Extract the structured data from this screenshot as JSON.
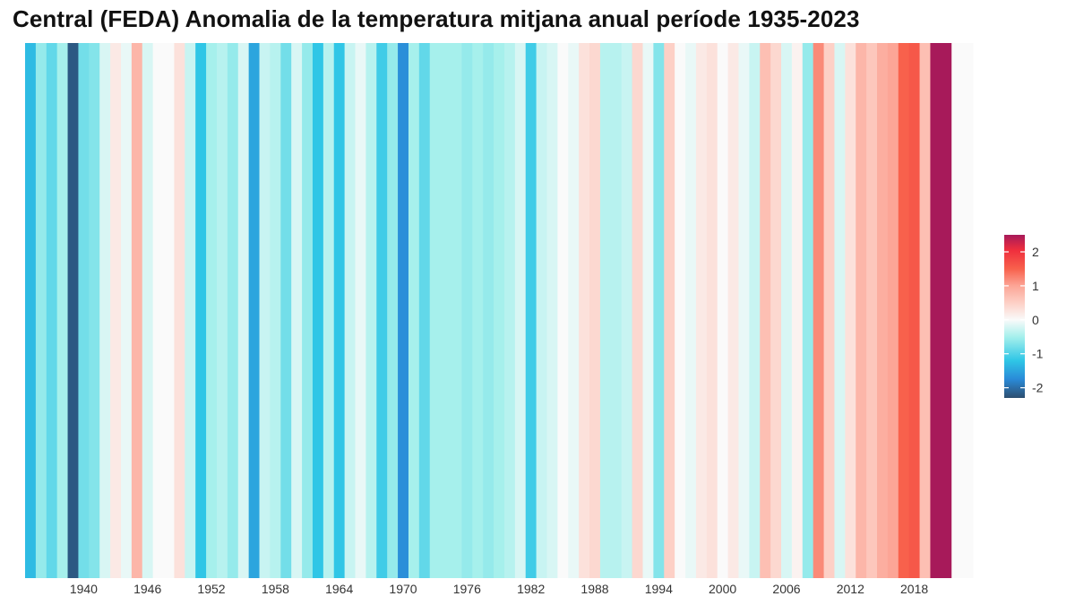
{
  "chart_data": {
    "type": "heatmap",
    "title": "Central (FEDA) Anomalia de la temperatura mitjana anual període 1935-2023",
    "xlabel": "",
    "ylabel": "",
    "x_start": 1935,
    "x_end": 2023,
    "xticks": [
      1940,
      1946,
      1952,
      1958,
      1964,
      1970,
      1976,
      1982,
      1988,
      1994,
      2000,
      2006,
      2012,
      2018
    ],
    "values": [
      -1.3,
      -0.6,
      -0.9,
      -0.5,
      -2.2,
      -0.8,
      -0.7,
      -0.2,
      0.2,
      -0.1,
      0.8,
      -0.2,
      0.0,
      0.0,
      0.3,
      -0.3,
      -1.2,
      -0.5,
      -0.4,
      -0.6,
      -0.2,
      -1.5,
      -0.3,
      -0.4,
      -0.8,
      -0.2,
      -0.6,
      -1.2,
      -0.4,
      -1.2,
      -0.3,
      -0.1,
      -0.4,
      -1.1,
      -0.6,
      -1.7,
      -0.5,
      -0.9,
      -0.5,
      -0.5,
      -0.5,
      -0.6,
      -0.5,
      -0.6,
      -0.5,
      -0.4,
      -0.2,
      -1.1,
      -0.3,
      -0.2,
      0.0,
      -0.1,
      0.3,
      0.4,
      -0.4,
      -0.4,
      -0.3,
      0.4,
      -0.1,
      -0.7,
      0.5,
      0.0,
      -0.1,
      0.2,
      0.3,
      0.0,
      0.2,
      -0.1,
      -0.3,
      0.7,
      0.4,
      -0.2,
      0.1,
      -0.6,
      1.2,
      0.5,
      -0.2,
      0.3,
      0.8,
      0.6,
      0.9,
      1.0,
      1.5,
      1.6,
      0.7,
      2.5,
      2.5,
      0.0,
      0.0
    ],
    "scale": {
      "min": -2.3,
      "max": 2.5,
      "stops": [
        {
          "v": -2.3,
          "c": "#2d4e70"
        },
        {
          "v": -1.75,
          "c": "#2a8ad8"
        },
        {
          "v": -1.2,
          "c": "#2fc6e6"
        },
        {
          "v": -0.5,
          "c": "#a6f0ec"
        },
        {
          "v": 0.0,
          "c": "#fafafa"
        },
        {
          "v": 0.5,
          "c": "#fdd0c6"
        },
        {
          "v": 1.0,
          "c": "#fca596"
        },
        {
          "v": 1.5,
          "c": "#f8614c"
        },
        {
          "v": 2.05,
          "c": "#ef2e3d"
        },
        {
          "v": 2.5,
          "c": "#a71a5a"
        }
      ]
    },
    "legend": {
      "position": "right",
      "ticks": [
        2,
        1,
        0,
        -1,
        -2
      ],
      "tick_labels": [
        "2",
        "1",
        "0",
        "-1",
        "-2"
      ]
    },
    "grid": false
  }
}
